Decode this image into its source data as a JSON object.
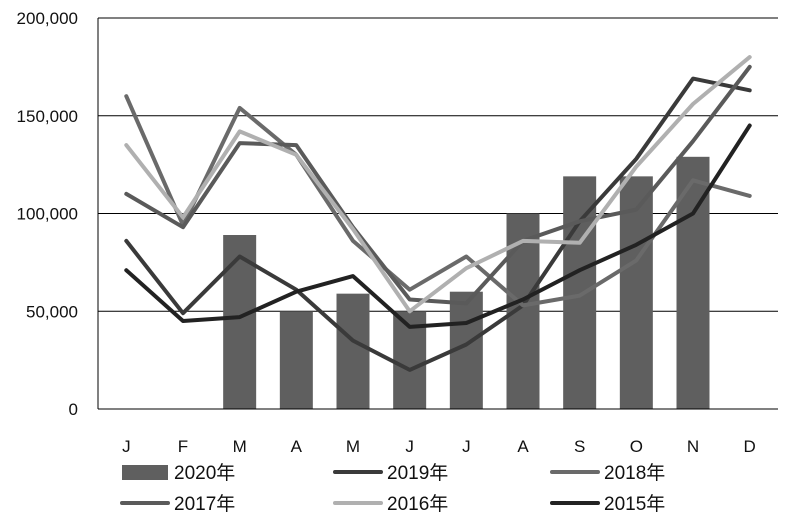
{
  "chart_data": {
    "type": "bar",
    "title": "",
    "xlabel": "",
    "ylabel": "",
    "ylim": [
      0,
      200000
    ],
    "y_ticks": [
      0,
      50000,
      100000,
      150000,
      200000
    ],
    "y_tick_labels": [
      "0",
      "50,000",
      "100,000",
      "150,000",
      "200,000"
    ],
    "grid": "horizontal",
    "legend_position": "bottom",
    "categories": [
      "J",
      "F",
      "M",
      "A",
      "M",
      "J",
      "J",
      "A",
      "S",
      "O",
      "N",
      "D"
    ],
    "series": [
      {
        "name": "2020年",
        "type": "bar",
        "color": "#5f5f5f",
        "values": [
          null,
          null,
          89000,
          50000,
          59000,
          50000,
          60000,
          100000,
          119000,
          119000,
          129000,
          null
        ]
      },
      {
        "name": "2019年",
        "type": "line",
        "color": "#3a3a3a",
        "values": [
          86000,
          49000,
          78000,
          61000,
          35000,
          20000,
          33000,
          53000,
          96000,
          128000,
          169000,
          163000
        ]
      },
      {
        "name": "2018年",
        "type": "line",
        "color": "#6a6a6a",
        "values": [
          160000,
          94000,
          154000,
          130000,
          86000,
          61000,
          78000,
          53000,
          58000,
          76000,
          117000,
          109000
        ]
      },
      {
        "name": "2017年",
        "type": "line",
        "color": "#5a5a5a",
        "values": [
          110000,
          93000,
          136000,
          135000,
          93000,
          56000,
          54000,
          86000,
          96000,
          102000,
          137000,
          175000
        ]
      },
      {
        "name": "2016年",
        "type": "line",
        "color": "#b0b0b0",
        "values": [
          135000,
          98000,
          142000,
          130000,
          92000,
          50000,
          72000,
          86000,
          85000,
          124000,
          156000,
          180000
        ]
      },
      {
        "name": "2015年",
        "type": "line",
        "color": "#222222",
        "values": [
          71000,
          45000,
          47000,
          60000,
          68000,
          42000,
          44000,
          56000,
          71000,
          84000,
          100000,
          145000
        ]
      }
    ]
  }
}
